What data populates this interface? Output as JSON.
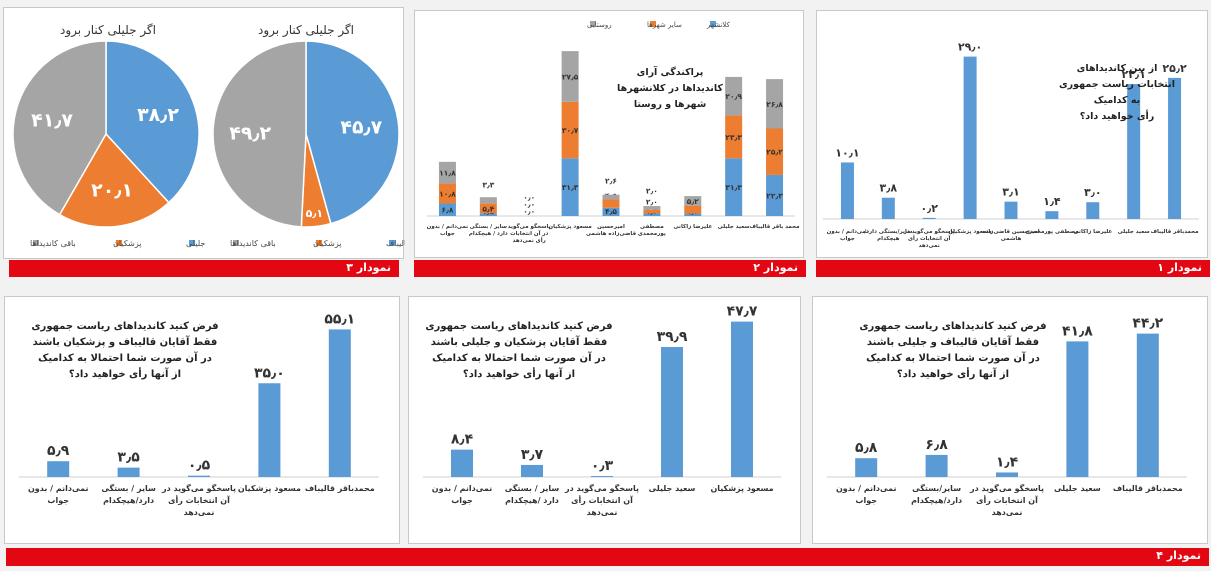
{
  "labels": {
    "chart1": "نمودار ۱",
    "chart2": "نمودار ۲",
    "chart3": "نمودار ۳",
    "chart4": "نمودار ۴"
  },
  "colors": {
    "blue": "#5b9bd5",
    "orange": "#ed7d31",
    "gray": "#a5a5a5",
    "red": "#e30613",
    "val": "#333333"
  },
  "chart_data": [
    {
      "id": "c1",
      "type": "bar",
      "title": [
        "از بین کاندیداهای",
        "انتخابات ریاست جمهوری",
        "به کدامیک",
        "رأی خواهید داد؟"
      ],
      "categories": [
        [
          "نمی‌دانم / بدون",
          "جواب"
        ],
        [
          "سایر/بستگی دارد/",
          "هیچکدام"
        ],
        [
          "پاسخگو می‌گوید در",
          "آن انتخابات رأی",
          "نمی‌دهد"
        ],
        [
          "مسعود پزشکیان"
        ],
        [
          "امیرحسین قاضی‌زاده",
          "هاشمی"
        ],
        [
          "مصطفی پورمحمدی"
        ],
        [
          "علیرضا زاکانی"
        ],
        [
          "سعید جلیلی"
        ],
        [
          "محمدباقر قالیباف"
        ]
      ],
      "values": [
        10.1,
        3.8,
        0.2,
        29.0,
        3.1,
        1.4,
        3.0,
        24.1,
        25.2
      ],
      "value_labels": [
        "۱۰٫۱",
        "۳٫۸",
        "۰٫۲",
        "۲۹٫۰",
        "۳٫۱",
        "۱٫۴",
        "۳٫۰",
        "۲۴٫۱",
        "۲۵٫۲"
      ],
      "ylim": [
        0,
        30
      ]
    },
    {
      "id": "c2",
      "type": "bar",
      "title": [
        "پراکندگی آرای",
        "کاندیداها در کلانشهرها",
        "شهرها و روستا"
      ],
      "legend": [
        "کلانشهر",
        "سایر شهرها",
        "روستایی"
      ],
      "categories": [
        [
          "نمی‌دانم / بدون",
          "جواب"
        ],
        [
          "سایر / بستگی",
          "دارد / هیچکدام"
        ],
        [
          "پاسخگو می‌گوید",
          "در آن انتخابات",
          "رأی نمی‌دهد"
        ],
        [
          "مسعود پزشکیان"
        ],
        [
          "امیرحسین",
          "قاضی‌زاده هاشمی"
        ],
        [
          "مصطفی",
          "پورمحمدی"
        ],
        [
          "علیرضا زاکانی"
        ],
        [
          "سعید جلیلی"
        ],
        [
          "محمد باقر قالیباف"
        ]
      ],
      "series": [
        {
          "name": "کلانشهر",
          "values": [
            6.8,
            1.5,
            0.0,
            31.3,
            4.5,
            1.4,
            1.3,
            31.3,
            22.3
          ],
          "value_labels": [
            "۶٫۸",
            "۱٫۵",
            "۰٫۰",
            "۳۱٫۳",
            "۴٫۵",
            "۱٫۴",
            "۱٫۳",
            "۳۱٫۳",
            "۲۲٫۳"
          ]
        },
        {
          "name": "سایر شهرها",
          "values": [
            10.8,
            5.4,
            0.0,
            30.7,
            4.5,
            2.0,
            4.3,
            23.3,
            25.2
          ],
          "value_labels": [
            "۱۰٫۸",
            "۵٫۴",
            "۰٫۰",
            "۳۰٫۷",
            "۴٫۵",
            "۲٫۰",
            "۴٫۳",
            "۲۳٫۳",
            "۲۵٫۲"
          ]
        },
        {
          "name": "روستایی",
          "values": [
            11.8,
            3.3,
            0.0,
            27.5,
            2.6,
            2.0,
            5.2,
            20.9,
            26.8
          ],
          "value_labels": [
            "۱۱٫۸",
            "۳٫۳",
            "۰٫۰",
            "۲۷٫۵",
            "۲٫۶",
            "۲٫۰",
            "۵٫۲",
            "۲۰٫۹",
            "۲۶٫۸"
          ]
        }
      ],
      "ylim": [
        0,
        95
      ]
    },
    {
      "id": "c3a",
      "type": "pie",
      "title": "اگر جلیلی کنار برود",
      "legend": [
        "جلیلی",
        "پزشکیان",
        "باقی کاندیداها"
      ],
      "values": [
        38.2,
        20.1,
        41.7
      ],
      "value_labels": [
        "۳۸٫۲",
        "۲۰٫۱",
        "۴۱٫۷"
      ],
      "colors": [
        "#5b9bd5",
        "#ed7d31",
        "#a5a5a5"
      ]
    },
    {
      "id": "c3b",
      "type": "pie",
      "title": "اگر جلیلی کنار برود",
      "legend": [
        "قالیباف",
        "پزشکیان",
        "باقی کاندیداها"
      ],
      "values": [
        45.7,
        5.1,
        49.2
      ],
      "value_labels": [
        "۴۵٫۷",
        "۵٫۱",
        "۴۹٫۲"
      ],
      "colors": [
        "#5b9bd5",
        "#ed7d31",
        "#a5a5a5"
      ]
    },
    {
      "id": "c4c",
      "type": "bar",
      "title": [
        "فرض کنید کاندیداهای ریاست جمهوری",
        "فقط آقایان قالیباف و پزشکیان باشند",
        "در آن صورت شما احتمالا به کدامیک",
        "از آنها رأی خواهید داد؟"
      ],
      "categories": [
        [
          "نمی‌دانم / بدون",
          "جواب"
        ],
        [
          "سایر / بستگی",
          "دارد/هیچکدام"
        ],
        [
          "پاسخگو می‌گوید در",
          "آن انتخابات رأی",
          "نمی‌دهد"
        ],
        [
          "مسعود پزشکیان"
        ],
        [
          "محمدباقر قالیباف"
        ]
      ],
      "values": [
        5.9,
        3.5,
        0.5,
        35.0,
        55.1
      ],
      "value_labels": [
        "۵٫۹",
        "۳٫۵",
        "۰٫۵",
        "۳۵٫۰",
        "۵۵٫۱"
      ],
      "ylim": [
        0,
        56
      ]
    },
    {
      "id": "c4b",
      "type": "bar",
      "title": [
        "فرض کنید کاندیداهای ریاست جمهوری",
        "فقط آقایان پزشکیان و جلیلی باشند",
        "در آن صورت شما احتمالا به کدامیک",
        "از آنها رأی خواهید داد؟"
      ],
      "categories": [
        [
          "نمی‌دانم / بدون",
          "جواب"
        ],
        [
          "سایر / بستگی",
          "دارد /هیچکدام"
        ],
        [
          "پاسخگو می‌گوید در",
          "آن انتخابات رأی",
          "نمی‌دهد"
        ],
        [
          "سعید جلیلی"
        ],
        [
          "مسعود پزشکیان"
        ]
      ],
      "values": [
        8.4,
        3.7,
        0.3,
        39.9,
        47.7
      ],
      "value_labels": [
        "۸٫۴",
        "۳٫۷",
        "۰٫۳",
        "۳۹٫۹",
        "۴۷٫۷"
      ],
      "ylim": [
        0,
        48.5
      ]
    },
    {
      "id": "c4a",
      "type": "bar",
      "title": [
        "فرض کنید کاندیداهای ریاست جمهوری",
        "فقط آقایان قالیباف و جلیلی باشند",
        "در آن صورت شما احتمالا به کدامیک",
        "از آنها رأی خواهید داد؟"
      ],
      "categories": [
        [
          "نمی‌دانم / بدون",
          "جواب"
        ],
        [
          "سایر/بستگی",
          "دارد/هیچکدام"
        ],
        [
          "پاسخگو می‌گوید در",
          "آن انتخابات رأی",
          "نمی‌دهد"
        ],
        [
          "سعید جلیلی"
        ],
        [
          "محمدباقر قالیباف"
        ]
      ],
      "values": [
        5.8,
        6.8,
        1.4,
        41.8,
        44.2
      ],
      "value_labels": [
        "۵٫۸",
        "۶٫۸",
        "۱٫۴",
        "۴۱٫۸",
        "۴۴٫۲"
      ],
      "ylim": [
        0,
        45
      ]
    }
  ]
}
